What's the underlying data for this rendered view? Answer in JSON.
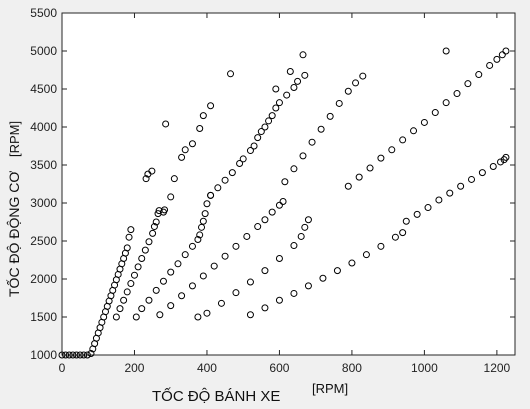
{
  "chart_data": {
    "type": "scatter",
    "title": "",
    "xlabel": "TỐC ĐỘ BÁNH XE",
    "xunit": "[RPM]",
    "ylabel": "TỐC ĐỘ ĐỘNG CƠ",
    "yunit": "[RPM]",
    "xlim": [
      0,
      1250
    ],
    "ylim": [
      1000,
      5500
    ],
    "xticks": [
      0,
      200,
      400,
      600,
      800,
      1000,
      1200
    ],
    "yticks": [
      1000,
      1500,
      2000,
      2500,
      3000,
      3500,
      4000,
      4500,
      5000,
      5500
    ],
    "grid": false,
    "marker": "open-circle",
    "marker_color": "#000000",
    "series": [
      {
        "x": [
          0,
          10,
          20,
          30,
          40,
          50,
          60,
          70,
          80,
          85,
          90,
          95,
          100,
          105,
          110,
          115,
          120,
          125,
          130,
          135,
          140,
          145,
          150,
          155,
          160,
          165,
          170,
          175,
          180,
          185,
          190
        ],
        "y": [
          1000,
          1000,
          1000,
          1000,
          1000,
          1000,
          1000,
          1000,
          1020,
          1080,
          1150,
          1220,
          1290,
          1360,
          1430,
          1500,
          1570,
          1640,
          1710,
          1780,
          1850,
          1920,
          1990,
          2060,
          2130,
          2200,
          2270,
          2340,
          2410,
          2550,
          2650
        ]
      },
      {
        "x": [
          150,
          160,
          170,
          180,
          190,
          200,
          210,
          220,
          230,
          240,
          250,
          255,
          260,
          265,
          268
        ],
        "y": [
          1500,
          1610,
          1720,
          1830,
          1940,
          2050,
          2160,
          2270,
          2380,
          2490,
          2600,
          2690,
          2750,
          2860,
          2900
        ]
      },
      {
        "x": [
          232,
          237,
          248,
          280,
          283,
          286,
          300,
          310,
          330,
          340,
          360,
          380,
          390,
          410
        ],
        "y": [
          3320,
          3380,
          3420,
          2880,
          2910,
          4040,
          3080,
          3320,
          3600,
          3700,
          3780,
          3980,
          4150,
          4280
        ]
      },
      {
        "x": [
          205,
          220,
          240,
          260,
          280,
          300,
          320,
          340,
          360,
          375,
          380,
          385,
          390,
          395,
          400,
          410
        ],
        "y": [
          1500,
          1610,
          1720,
          1850,
          1970,
          2090,
          2200,
          2320,
          2430,
          2520,
          2580,
          2680,
          2760,
          2860,
          2990,
          3100
        ]
      },
      {
        "x": [
          410,
          430,
          450,
          470,
          490,
          500,
          520,
          530,
          540,
          550,
          560,
          570,
          580,
          590,
          600,
          620,
          640,
          650,
          670
        ],
        "y": [
          3100,
          3200,
          3300,
          3400,
          3520,
          3580,
          3690,
          3750,
          3860,
          3940,
          4000,
          4080,
          4150,
          4250,
          4320,
          4420,
          4520,
          4600,
          4680
        ]
      },
      {
        "x": [
          465,
          590,
          630,
          665
        ],
        "y": [
          4700,
          4500,
          4730,
          4950
        ]
      },
      {
        "x": [
          270,
          300,
          330,
          360,
          390,
          420,
          450,
          480,
          510,
          540,
          560,
          580,
          600,
          610
        ],
        "y": [
          1530,
          1650,
          1780,
          1910,
          2040,
          2170,
          2300,
          2430,
          2560,
          2690,
          2780,
          2880,
          2970,
          3020
        ]
      },
      {
        "x": [
          615,
          640,
          665,
          690,
          715,
          740,
          765,
          790,
          810,
          830
        ],
        "y": [
          3280,
          3450,
          3620,
          3800,
          3970,
          4140,
          4310,
          4470,
          4580,
          4670
        ]
      },
      {
        "x": [
          375,
          400,
          440,
          480,
          520,
          560,
          600,
          640,
          660,
          670,
          680
        ],
        "y": [
          1500,
          1550,
          1680,
          1820,
          1960,
          2110,
          2270,
          2440,
          2560,
          2680,
          2780
        ]
      },
      {
        "x": [
          520,
          560,
          600,
          640,
          680,
          720,
          760,
          800,
          840,
          880,
          920,
          940
        ],
        "y": [
          1530,
          1620,
          1720,
          1810,
          1910,
          2010,
          2110,
          2210,
          2320,
          2430,
          2550,
          2610
        ]
      },
      {
        "x": [
          950,
          980,
          1010,
          1040,
          1070,
          1100,
          1130,
          1160,
          1190,
          1210,
          1220,
          1225
        ],
        "y": [
          2760,
          2850,
          2940,
          3040,
          3130,
          3220,
          3310,
          3400,
          3480,
          3540,
          3570,
          3600
        ]
      },
      {
        "x": [
          790,
          820,
          850,
          880,
          910,
          940,
          970,
          1000,
          1030,
          1060,
          1090,
          1120,
          1150,
          1180,
          1200,
          1215,
          1225
        ],
        "y": [
          3220,
          3340,
          3460,
          3590,
          3700,
          3830,
          3950,
          4060,
          4190,
          4320,
          4440,
          4570,
          4690,
          4810,
          4890,
          4950,
          5000
        ]
      },
      {
        "x": [
          1060
        ],
        "y": [
          5000
        ]
      }
    ]
  }
}
